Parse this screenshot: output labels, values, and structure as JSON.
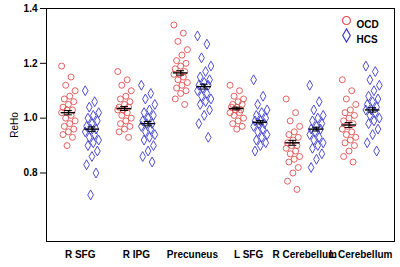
{
  "chart_data": {
    "type": "scatter",
    "y_label": "ReHo",
    "categories": [
      "R SFG",
      "R IPG",
      "Precuneus",
      "L SFG",
      "R Cerebellum",
      "L Cerebellum"
    ],
    "ylim": [
      0.55,
      1.4
    ],
    "yticks": [
      0.8,
      {
        "value": 1,
        "label": "1.0"
      },
      1.2,
      1.4
    ],
    "legend": "upper right",
    "series": [
      {
        "name": "OCD",
        "color": "#e0504f",
        "marker": "circle",
        "values": [
          [
            1.19,
            1.15,
            1.12,
            1.1,
            1.08,
            1.07,
            1.06,
            1.05,
            1.04,
            1.03,
            1.03,
            1.02,
            1.01,
            1.0,
            0.99,
            0.98,
            0.97,
            0.96,
            0.95,
            0.94,
            0.93,
            0.9
          ],
          [
            1.17,
            1.14,
            1.12,
            1.1,
            1.08,
            1.07,
            1.06,
            1.05,
            1.04,
            1.04,
            1.03,
            1.03,
            1.02,
            1.01,
            1.0,
            0.99,
            0.98,
            0.97,
            0.96,
            0.95,
            0.93
          ],
          [
            1.34,
            1.31,
            1.28,
            1.25,
            1.23,
            1.21,
            1.2,
            1.19,
            1.18,
            1.17,
            1.16,
            1.16,
            1.15,
            1.14,
            1.13,
            1.12,
            1.11,
            1.1,
            1.09,
            1.07,
            1.05
          ],
          [
            1.12,
            1.1,
            1.08,
            1.07,
            1.06,
            1.05,
            1.05,
            1.04,
            1.04,
            1.03,
            1.03,
            1.02,
            1.02,
            1.01,
            1.0,
            0.99,
            0.98,
            0.97,
            0.96
          ],
          [
            1.07,
            1.02,
            0.99,
            0.97,
            0.95,
            0.94,
            0.93,
            0.92,
            0.91,
            0.9,
            0.9,
            0.89,
            0.88,
            0.87,
            0.86,
            0.85,
            0.84,
            0.82,
            0.8,
            0.77,
            0.74
          ],
          [
            1.14,
            1.1,
            1.07,
            1.05,
            1.03,
            1.02,
            1.01,
            1.0,
            0.99,
            0.98,
            0.97,
            0.96,
            0.95,
            0.94,
            0.93,
            0.92,
            0.91,
            0.9,
            0.88,
            0.86,
            0.84
          ]
        ],
        "means": [
          1.02,
          1.035,
          1.165,
          1.035,
          0.91,
          0.975
        ],
        "sem": [
          0.008,
          0.007,
          0.008,
          0.005,
          0.009,
          0.009
        ]
      },
      {
        "name": "HCS",
        "color": "#3a3acc",
        "marker": "diamond",
        "values": [
          [
            1.1,
            1.06,
            1.04,
            1.02,
            1.01,
            1.0,
            0.99,
            0.98,
            0.97,
            0.96,
            0.96,
            0.95,
            0.94,
            0.93,
            0.92,
            0.91,
            0.9,
            0.88,
            0.86,
            0.83,
            0.8,
            0.72
          ],
          [
            1.12,
            1.09,
            1.07,
            1.05,
            1.03,
            1.02,
            1.01,
            1.0,
            0.99,
            0.98,
            0.98,
            0.97,
            0.96,
            0.95,
            0.94,
            0.93,
            0.92,
            0.9,
            0.88,
            0.86,
            0.84
          ],
          [
            1.3,
            1.27,
            1.22,
            1.19,
            1.17,
            1.15,
            1.14,
            1.13,
            1.12,
            1.12,
            1.11,
            1.1,
            1.09,
            1.08,
            1.07,
            1.06,
            1.05,
            1.03,
            1.01,
            0.98,
            0.93
          ],
          [
            1.14,
            1.08,
            1.05,
            1.03,
            1.02,
            1.01,
            1.0,
            0.99,
            0.99,
            0.98,
            0.98,
            0.97,
            0.96,
            0.95,
            0.94,
            0.93,
            0.92,
            0.91,
            0.9,
            0.88
          ],
          [
            1.12,
            1.06,
            1.03,
            1.01,
            1.0,
            0.99,
            0.98,
            0.97,
            0.96,
            0.96,
            0.95,
            0.94,
            0.93,
            0.92,
            0.91,
            0.9,
            0.89,
            0.87,
            0.85,
            0.82
          ],
          [
            1.19,
            1.17,
            1.14,
            1.12,
            1.1,
            1.08,
            1.07,
            1.06,
            1.05,
            1.04,
            1.03,
            1.03,
            1.02,
            1.01,
            1.0,
            0.99,
            0.98,
            0.96,
            0.94,
            0.91,
            0.88
          ]
        ],
        "means": [
          0.96,
          0.98,
          1.115,
          0.985,
          0.96,
          1.03
        ],
        "sem": [
          0.008,
          0.008,
          0.009,
          0.006,
          0.007,
          0.008
        ]
      }
    ]
  }
}
